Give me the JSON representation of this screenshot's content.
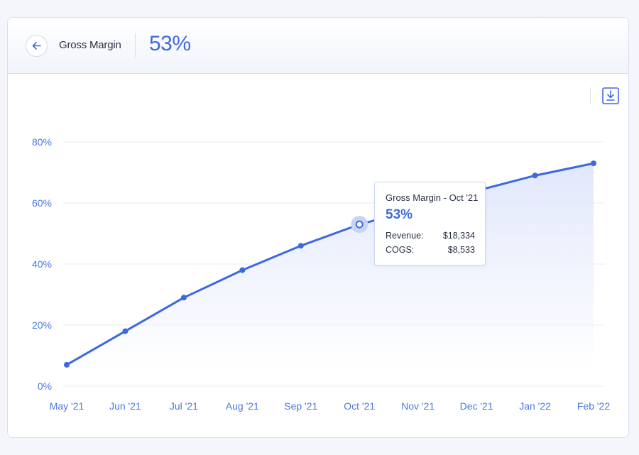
{
  "header": {
    "metric_name": "Gross Margin",
    "metric_value": "53%"
  },
  "icons": {
    "back": "arrow-left-icon",
    "download": "download-icon"
  },
  "colors": {
    "accent": "#3f6ad8",
    "line": "#3d69e0",
    "grid": "#e8ecf4",
    "axis_text": "#4a78e0"
  },
  "tooltip": {
    "title": "Gross Margin - Oct '21",
    "value": "53%",
    "rows": [
      {
        "label": "Revenue:",
        "value": "$18,334"
      },
      {
        "label": "COGS:",
        "value": "$8,533"
      }
    ]
  },
  "chart_data": {
    "type": "area",
    "title": "",
    "xlabel": "",
    "ylabel": "",
    "categories": [
      "May '21",
      "Jun '21",
      "Jul '21",
      "Aug '21",
      "Sep '21",
      "Oct '21",
      "Nov '21",
      "Dec '21",
      "Jan '22",
      "Feb '22"
    ],
    "series": [
      {
        "values": [
          7,
          18,
          29,
          38,
          46,
          53,
          58,
          64,
          69,
          73
        ]
      }
    ],
    "ylim": [
      0,
      80
    ],
    "yticks": [
      0,
      20,
      40,
      60,
      80
    ],
    "ytick_labels": [
      "0%",
      "20%",
      "40%",
      "60%",
      "80%"
    ],
    "grid": true,
    "highlight_index": 5
  }
}
